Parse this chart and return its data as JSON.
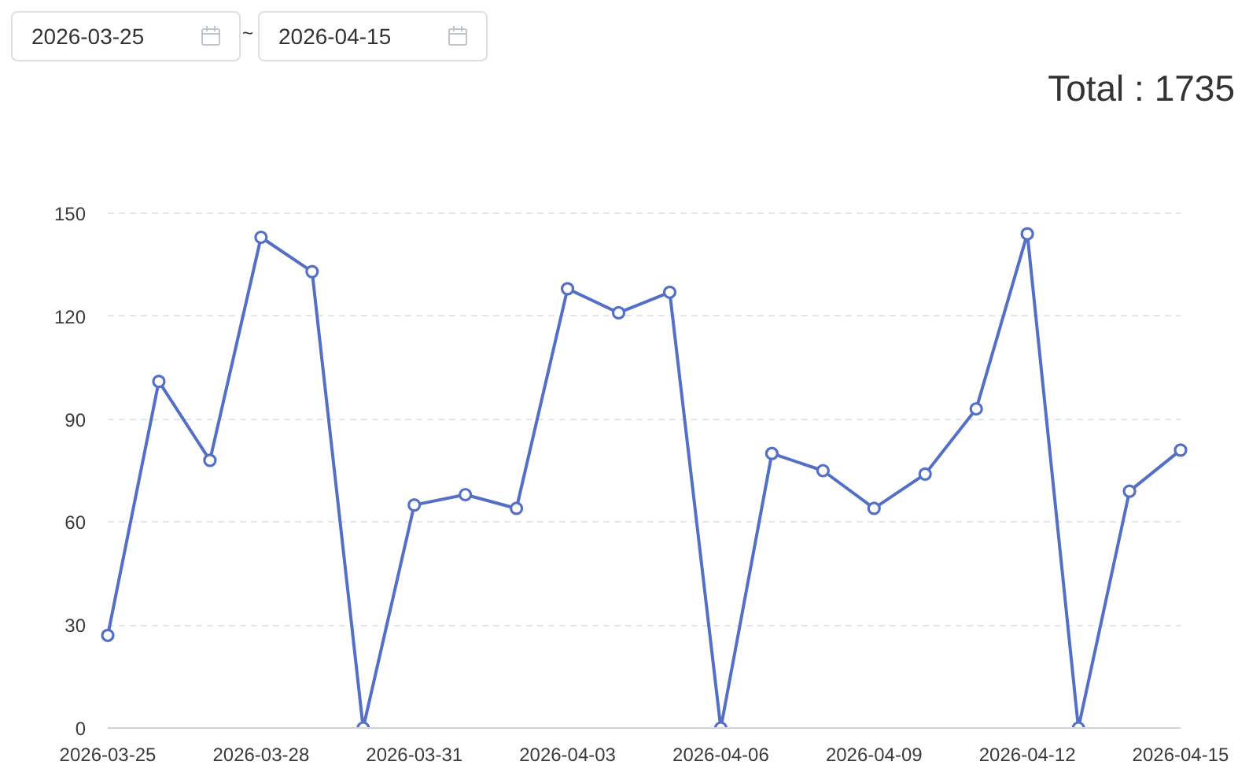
{
  "chart_data": {
    "type": "line",
    "x": [
      "2026-03-25",
      "2026-03-26",
      "2026-03-27",
      "2026-03-28",
      "2026-03-29",
      "2026-03-30",
      "2026-03-31",
      "2026-04-01",
      "2026-04-02",
      "2026-04-03",
      "2026-04-04",
      "2026-04-05",
      "2026-04-06",
      "2026-04-07",
      "2026-04-08",
      "2026-04-09",
      "2026-04-10",
      "2026-04-11",
      "2026-04-12",
      "2026-04-13",
      "2026-04-14",
      "2026-04-15"
    ],
    "values": [
      27,
      101,
      78,
      143,
      133,
      0,
      65,
      68,
      64,
      128,
      121,
      127,
      0,
      80,
      75,
      64,
      74,
      93,
      144,
      0,
      69,
      81
    ],
    "color": "#5470c6",
    "xlim": [
      "2026-03-25",
      "2026-04-15"
    ],
    "xticks": [
      "2026-03-25",
      "2026-03-28",
      "2026-03-31",
      "2026-04-03",
      "2026-04-06",
      "2026-04-09",
      "2026-04-12",
      "2026-04-15"
    ],
    "ylim": [
      0,
      150
    ],
    "yticks": [
      0,
      30,
      60,
      90,
      120,
      150
    ],
    "grid": "y",
    "marker": "circle",
    "annotations": [
      "2026-03-25",
      "~",
      "2026-04-15",
      "Total : 1735"
    ]
  }
}
